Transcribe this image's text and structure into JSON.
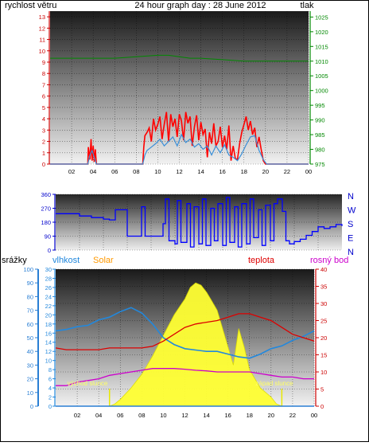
{
  "header": {
    "wind_label": "rychlost větru",
    "title": "24 hour graph day : 28 June 2012",
    "pressure_label": "tlak"
  },
  "colors": {
    "wind": "#ff0000",
    "wind_avg": "#3a8fd8",
    "pressure": "#008800",
    "wind_dir": "#0000ff",
    "rain": "#2a7fd4",
    "humidity": "#2288dd",
    "solar": "#ffff33",
    "temperature": "#dd0000",
    "dew_point": "#cc00cc",
    "sun_marker": "#e8e800"
  },
  "bottom_panel": {
    "rain_label": "srážky",
    "humidity_label": "vlhkost",
    "solar_label": "Solar",
    "temp_label": "teplota",
    "dew_label": "rosný bod",
    "sunrise_label": "východ slunce",
    "sunset_label": "západ slunce"
  },
  "direction_labels": [
    "N",
    "W",
    "S",
    "E",
    "N"
  ],
  "chart_data": [
    {
      "type": "line",
      "name": "wind",
      "x_ticks": [
        "02",
        "04",
        "06",
        "08",
        "10",
        "12",
        "14",
        "16",
        "18",
        "20",
        "22",
        "00"
      ],
      "y_left_ticks": [
        0,
        1,
        2,
        3,
        4,
        5,
        6,
        7,
        8,
        9,
        10,
        11,
        12,
        13
      ],
      "y_right_ticks": [
        975,
        980,
        985,
        990,
        995,
        1000,
        1005,
        1010,
        1015,
        1020,
        1025
      ],
      "ylim": [
        0,
        13.5
      ],
      "y2lim": [
        975,
        1027
      ],
      "series": [
        {
          "name": "gust",
          "x": [
            0,
            3.5,
            3.55,
            3.7,
            3.8,
            3.9,
            4.0,
            4.1,
            4.2,
            4.3,
            8.6,
            8.7,
            8.8,
            9.0,
            9.2,
            9.4,
            9.6,
            9.8,
            10.0,
            10.2,
            10.4,
            10.6,
            10.8,
            11.0,
            11.2,
            11.4,
            11.6,
            11.8,
            12.0,
            12.2,
            12.4,
            12.6,
            12.8,
            13.0,
            13.2,
            13.4,
            13.6,
            13.8,
            14.0,
            14.2,
            14.4,
            14.6,
            14.8,
            15.0,
            15.2,
            15.4,
            15.6,
            15.8,
            16.0,
            16.2,
            16.4,
            16.6,
            16.8,
            17.0,
            17.2,
            17.4,
            17.6,
            17.8,
            18.0,
            18.2,
            18.4,
            18.6,
            18.8,
            19.0,
            19.2,
            19.4,
            19.6,
            19.8,
            20.0,
            20.1,
            24
          ],
          "values": [
            0,
            0,
            1.5,
            0.4,
            2.2,
            0.3,
            1.6,
            0.2,
            1.3,
            0,
            0,
            1.5,
            2.5,
            2.8,
            3.2,
            2.0,
            4.0,
            3.0,
            3.5,
            4.2,
            2.2,
            3.5,
            4.6,
            2.0,
            4.4,
            3.3,
            4.0,
            2.4,
            4.4,
            3.8,
            2.1,
            4.6,
            3.6,
            4.2,
            1.6,
            3.3,
            4.3,
            2.1,
            3.7,
            2.6,
            3.1,
            0.6,
            2.8,
            1.8,
            3.6,
            1.6,
            2.0,
            3.3,
            1.5,
            2.5,
            1.3,
            3.4,
            0.3,
            1.6,
            0.5,
            0.4,
            1.8,
            2.8,
            3.5,
            4.2,
            3.0,
            3.8,
            2.6,
            3.2,
            1.5,
            2.4,
            1.3,
            0.3,
            0,
            0,
            0
          ]
        },
        {
          "name": "average",
          "x": [
            0,
            3.5,
            3.7,
            3.9,
            4.1,
            4.3,
            8.6,
            8.8,
            9.0,
            9.4,
            9.8,
            10.2,
            10.6,
            11.0,
            11.4,
            11.8,
            12.2,
            12.6,
            13.0,
            13.4,
            13.8,
            14.2,
            14.6,
            15.0,
            15.4,
            15.8,
            16.2,
            16.6,
            17.0,
            17.4,
            17.8,
            18.2,
            18.6,
            19.0,
            19.4,
            19.8,
            20.1,
            24
          ],
          "values": [
            0,
            0,
            0.8,
            1.2,
            0.6,
            0,
            0,
            0.8,
            1.2,
            1.5,
            1.8,
            2.2,
            1.6,
            2.0,
            2.4,
            1.6,
            2.6,
            1.9,
            2.2,
            1.5,
            1.8,
            1.3,
            1.6,
            0.8,
            1.6,
            1.0,
            1.7,
            0.8,
            0.6,
            0.3,
            0.9,
            1.7,
            2.4,
            2.5,
            1.2,
            0.4,
            0,
            0
          ]
        },
        {
          "name": "pressure",
          "axis": "right",
          "x": [
            0,
            2,
            4,
            6,
            8,
            10,
            11,
            12,
            13,
            14,
            16,
            18,
            20,
            22,
            24
          ],
          "values": [
            1011,
            1011,
            1011,
            1011,
            1011.5,
            1012,
            1012,
            1011.5,
            1011,
            1011,
            1010.5,
            1010,
            1010,
            1010,
            1010
          ]
        }
      ]
    },
    {
      "type": "scatter",
      "name": "wind_direction",
      "ylim": [
        0,
        360
      ],
      "y_ticks": [
        0,
        90,
        180,
        270,
        360
      ],
      "x": [
        0,
        1,
        2,
        3,
        4,
        4.5,
        5,
        5.5,
        6,
        6.5,
        7,
        7.2,
        7.5,
        8,
        8.5,
        9,
        9.2,
        9.5,
        10,
        10.2,
        10.5,
        11,
        11.3,
        11.6,
        12,
        12.3,
        12.6,
        13,
        13.3,
        13.6,
        14,
        14.3,
        14.6,
        15,
        15.3,
        15.6,
        16,
        16.3,
        16.6,
        17,
        17.3,
        17.6,
        18,
        18.3,
        18.6,
        19,
        19.3,
        19.6,
        20,
        20.5,
        21,
        21.5,
        22,
        22.5,
        23,
        23.5,
        24
      ],
      "values": [
        235,
        235,
        220,
        210,
        200,
        195,
        260,
        260,
        90,
        90,
        90,
        280,
        90,
        90,
        90,
        170,
        330,
        60,
        40,
        320,
        50,
        300,
        20,
        280,
        40,
        330,
        30,
        270,
        60,
        300,
        30,
        340,
        50,
        280,
        20,
        300,
        40,
        330,
        80,
        260,
        30,
        290,
        60,
        300,
        330,
        250,
        60,
        40,
        55,
        70,
        95,
        120,
        150,
        140,
        150,
        165,
        155
      ]
    },
    {
      "type": "line",
      "name": "weather",
      "y_rain_ticks": [
        0,
        10,
        20,
        30,
        40,
        50,
        60,
        70,
        80,
        90,
        100
      ],
      "y_hum_ticks": [
        0,
        2,
        4,
        6,
        8,
        10,
        12,
        14,
        16,
        18,
        20,
        22,
        24,
        26,
        28,
        30
      ],
      "y_right_ticks": [
        0,
        5,
        10,
        15,
        20,
        25,
        30,
        35,
        40
      ],
      "series": [
        {
          "name": "humidity",
          "x": [
            0,
            1,
            2,
            3,
            4,
            5,
            6,
            7,
            8,
            9,
            10,
            11,
            12,
            13,
            14,
            15,
            16,
            17,
            18,
            19,
            20,
            21,
            22,
            23,
            24
          ],
          "values": [
            55,
            56,
            58,
            59,
            63,
            65,
            69,
            72,
            68,
            60,
            50,
            45,
            42,
            41,
            40,
            40,
            38,
            36,
            35,
            38,
            42,
            44,
            48,
            51,
            55
          ]
        },
        {
          "name": "solar",
          "x": [
            0,
            5.0,
            5.5,
            6,
            7,
            8,
            9,
            10,
            11,
            12,
            12.5,
            13,
            13.5,
            14,
            14.5,
            15,
            16,
            16.5,
            17,
            17.5,
            18,
            19,
            20,
            20.5,
            21,
            24
          ],
          "values": [
            0,
            0,
            0.5,
            1.5,
            4,
            7,
            11,
            15.5,
            20,
            23.5,
            26,
            27,
            26.5,
            25,
            23,
            21,
            13,
            9,
            17,
            13,
            8,
            4,
            2,
            0.5,
            0,
            0
          ]
        },
        {
          "name": "temperature",
          "x": [
            0,
            1,
            2,
            3,
            4,
            5,
            6,
            7,
            8,
            9,
            10,
            11,
            12,
            13,
            14,
            15,
            16,
            17,
            18,
            19,
            20,
            21,
            22,
            23,
            24
          ],
          "values": [
            17,
            16.5,
            16.5,
            16.5,
            16.5,
            17,
            17,
            17,
            17,
            17.5,
            19,
            21,
            23,
            24,
            24.5,
            25,
            26,
            27,
            27,
            26,
            25,
            23,
            21,
            20,
            19
          ]
        },
        {
          "name": "dew_point",
          "x": [
            0,
            1,
            2,
            3,
            4,
            5,
            6,
            7,
            8,
            9,
            10,
            11,
            12,
            13,
            14,
            15,
            16,
            17,
            18,
            19,
            20,
            21,
            22,
            23,
            24
          ],
          "values": [
            6,
            6,
            7,
            7.5,
            8,
            9,
            9.5,
            10,
            10.5,
            11,
            11,
            11,
            10.8,
            10.5,
            10.3,
            10,
            10,
            10,
            10,
            9.5,
            9,
            8.5,
            8.5,
            8,
            8
          ]
        },
        {
          "name": "rain",
          "x": [
            0,
            24
          ],
          "values": [
            0,
            0
          ]
        }
      ]
    }
  ]
}
